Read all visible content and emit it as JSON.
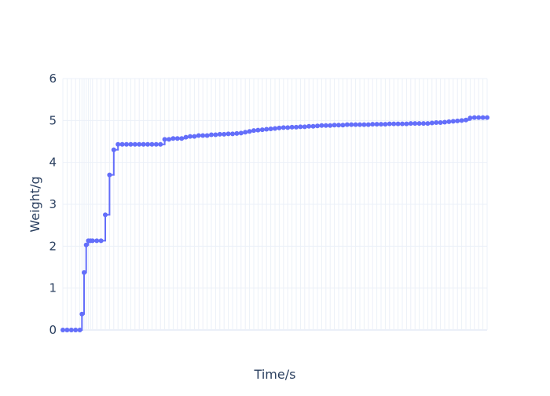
{
  "chart_data": {
    "type": "line",
    "xlabel": "Time/s",
    "ylabel": "Weight/g",
    "xlim": [
      0,
      100
    ],
    "ylim": [
      0,
      6
    ],
    "ytick_values": [
      0,
      1,
      2,
      3,
      4,
      5,
      6
    ],
    "ytick_labels": [
      "0",
      "1",
      "2",
      "3",
      "4",
      "5",
      "6"
    ],
    "grid": true,
    "series_color": "#636efa",
    "series": [
      {
        "x": [
          0,
          1,
          2,
          3,
          4,
          4.5,
          5,
          5.5,
          6,
          6.5,
          7,
          8,
          9,
          10,
          11,
          12,
          13,
          14,
          15,
          16,
          17,
          18,
          19,
          20,
          21,
          22,
          23,
          24,
          25,
          26,
          27,
          28,
          29,
          30,
          31,
          32,
          33,
          34,
          35,
          36,
          37,
          38,
          39,
          40,
          41,
          42,
          43,
          44,
          45,
          46,
          47,
          48,
          49,
          50,
          51,
          52,
          53,
          54,
          55,
          56,
          57,
          58,
          59,
          60,
          61,
          62,
          63,
          64,
          65,
          66,
          67,
          68,
          69,
          70,
          71,
          72,
          73,
          74,
          75,
          76,
          77,
          78,
          79,
          80,
          81,
          82,
          83,
          84,
          85,
          86,
          87,
          88,
          89,
          90,
          91,
          92,
          93,
          94,
          95,
          96,
          97,
          98,
          99,
          100
        ],
        "y": [
          0,
          0,
          0,
          0,
          0,
          0.38,
          1.37,
          2.03,
          2.13,
          2.13,
          2.13,
          2.13,
          2.13,
          2.75,
          3.7,
          4.3,
          4.43,
          4.43,
          4.43,
          4.43,
          4.43,
          4.43,
          4.43,
          4.43,
          4.43,
          4.43,
          4.43,
          4.55,
          4.55,
          4.57,
          4.57,
          4.57,
          4.6,
          4.62,
          4.62,
          4.64,
          4.64,
          4.64,
          4.66,
          4.66,
          4.67,
          4.67,
          4.68,
          4.68,
          4.69,
          4.7,
          4.72,
          4.74,
          4.76,
          4.77,
          4.78,
          4.79,
          4.8,
          4.81,
          4.82,
          4.83,
          4.83,
          4.84,
          4.84,
          4.85,
          4.85,
          4.86,
          4.86,
          4.87,
          4.88,
          4.88,
          4.88,
          4.89,
          4.89,
          4.89,
          4.9,
          4.9,
          4.9,
          4.9,
          4.9,
          4.9,
          4.91,
          4.91,
          4.91,
          4.91,
          4.92,
          4.92,
          4.92,
          4.92,
          4.92,
          4.93,
          4.93,
          4.93,
          4.93,
          4.93,
          4.94,
          4.95,
          4.95,
          4.96,
          4.97,
          4.98,
          4.99,
          5,
          5.01,
          5.06,
          5.07,
          5.07,
          5.07,
          5.07
        ]
      }
    ]
  }
}
